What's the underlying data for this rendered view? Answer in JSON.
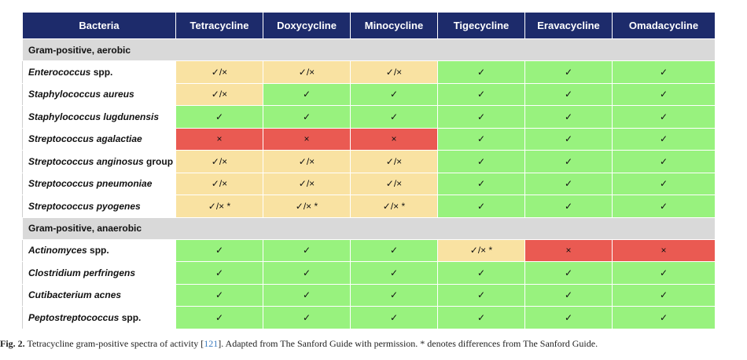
{
  "table": {
    "headers": [
      "Bacteria",
      "Tetracycline",
      "Doxycycline",
      "Minocycline",
      "Tigecycline",
      "Eravacycline",
      "Omadacycline"
    ],
    "sections": [
      {
        "title": "Gram-positive, aerobic",
        "rows": [
          {
            "name": "Enterococcus spp.",
            "italic_part": "Enterococcus",
            "plain_part": " spp.",
            "cells": [
              {
                "text": "✓/×",
                "status": "variable"
              },
              {
                "text": "✓/×",
                "status": "variable"
              },
              {
                "text": "✓/×",
                "status": "variable"
              },
              {
                "text": "✓",
                "status": "susceptible"
              },
              {
                "text": "✓",
                "status": "susceptible"
              },
              {
                "text": "✓",
                "status": "susceptible"
              }
            ]
          },
          {
            "name": "Staphylococcus aureus",
            "italic_part": "Staphylococcus aureus",
            "plain_part": "",
            "cells": [
              {
                "text": "✓/×",
                "status": "variable"
              },
              {
                "text": "✓",
                "status": "susceptible"
              },
              {
                "text": "✓",
                "status": "susceptible"
              },
              {
                "text": "✓",
                "status": "susceptible"
              },
              {
                "text": "✓",
                "status": "susceptible"
              },
              {
                "text": "✓",
                "status": "susceptible"
              }
            ]
          },
          {
            "name": "Staphylococcus lugdunensis",
            "italic_part": "Staphylococcus lugdunensis",
            "plain_part": "",
            "cells": [
              {
                "text": "✓",
                "status": "susceptible"
              },
              {
                "text": "✓",
                "status": "susceptible"
              },
              {
                "text": "✓",
                "status": "susceptible"
              },
              {
                "text": "✓",
                "status": "susceptible"
              },
              {
                "text": "✓",
                "status": "susceptible"
              },
              {
                "text": "✓",
                "status": "susceptible"
              }
            ]
          },
          {
            "name": "Streptococcus agalactiae",
            "italic_part": "Streptococcus agalactiae",
            "plain_part": "",
            "cells": [
              {
                "text": "×",
                "status": "resistant"
              },
              {
                "text": "×",
                "status": "resistant"
              },
              {
                "text": "×",
                "status": "resistant"
              },
              {
                "text": "✓",
                "status": "susceptible"
              },
              {
                "text": "✓",
                "status": "susceptible"
              },
              {
                "text": "✓",
                "status": "susceptible"
              }
            ]
          },
          {
            "name": "Streptococcus anginosus group",
            "italic_part": "Streptococcus anginosus",
            "plain_part": " group",
            "cells": [
              {
                "text": "✓/×",
                "status": "variable"
              },
              {
                "text": "✓/×",
                "status": "variable"
              },
              {
                "text": "✓/×",
                "status": "variable"
              },
              {
                "text": "✓",
                "status": "susceptible"
              },
              {
                "text": "✓",
                "status": "susceptible"
              },
              {
                "text": "✓",
                "status": "susceptible"
              }
            ]
          },
          {
            "name": "Streptococcus pneumoniae",
            "italic_part": "Streptococcus pneumoniae",
            "plain_part": "",
            "cells": [
              {
                "text": "✓/×",
                "status": "variable"
              },
              {
                "text": "✓/×",
                "status": "variable"
              },
              {
                "text": "✓/×",
                "status": "variable"
              },
              {
                "text": "✓",
                "status": "susceptible"
              },
              {
                "text": "✓",
                "status": "susceptible"
              },
              {
                "text": "✓",
                "status": "susceptible"
              }
            ]
          },
          {
            "name": "Streptococcus pyogenes",
            "italic_part": "Streptococcus pyogenes",
            "plain_part": "",
            "cells": [
              {
                "text": "✓/× *",
                "status": "variable"
              },
              {
                "text": "✓/× *",
                "status": "variable"
              },
              {
                "text": "✓/× *",
                "status": "variable"
              },
              {
                "text": "✓",
                "status": "susceptible"
              },
              {
                "text": "✓",
                "status": "susceptible"
              },
              {
                "text": "✓",
                "status": "susceptible"
              }
            ]
          }
        ]
      },
      {
        "title": "Gram-positive, anaerobic",
        "rows": [
          {
            "name": "Actinomyces spp.",
            "italic_part": "Actinomyces",
            "plain_part": " spp.",
            "cells": [
              {
                "text": "✓",
                "status": "susceptible"
              },
              {
                "text": "✓",
                "status": "susceptible"
              },
              {
                "text": "✓",
                "status": "susceptible"
              },
              {
                "text": "✓/× *",
                "status": "variable"
              },
              {
                "text": "×",
                "status": "resistant"
              },
              {
                "text": "×",
                "status": "resistant"
              }
            ]
          },
          {
            "name": "Clostridium perfringens",
            "italic_part": "Clostridium perfringens",
            "plain_part": "",
            "cells": [
              {
                "text": "✓",
                "status": "susceptible"
              },
              {
                "text": "✓",
                "status": "susceptible"
              },
              {
                "text": "✓",
                "status": "susceptible"
              },
              {
                "text": "✓",
                "status": "susceptible"
              },
              {
                "text": "✓",
                "status": "susceptible"
              },
              {
                "text": "✓",
                "status": "susceptible"
              }
            ]
          },
          {
            "name": "Cutibacterium acnes",
            "italic_part": "Cutibacterium acnes",
            "plain_part": "",
            "cells": [
              {
                "text": "✓",
                "status": "susceptible"
              },
              {
                "text": "✓",
                "status": "susceptible"
              },
              {
                "text": "✓",
                "status": "susceptible"
              },
              {
                "text": "✓",
                "status": "susceptible"
              },
              {
                "text": "✓",
                "status": "susceptible"
              },
              {
                "text": "✓",
                "status": "susceptible"
              }
            ]
          },
          {
            "name": "Peptostreptococcus spp.",
            "italic_part": "Peptostreptococcus",
            "plain_part": " spp.",
            "cells": [
              {
                "text": "✓",
                "status": "susceptible"
              },
              {
                "text": "✓",
                "status": "susceptible"
              },
              {
                "text": "✓",
                "status": "susceptible"
              },
              {
                "text": "✓",
                "status": "susceptible"
              },
              {
                "text": "✓",
                "status": "susceptible"
              },
              {
                "text": "✓",
                "status": "susceptible"
              }
            ]
          }
        ]
      }
    ]
  },
  "caption": {
    "label": "Fig. 2.",
    "text_before": "Tetracycline gram-positive spectra of activity [",
    "ref": "121",
    "text_after": "]. Adapted from The Sanford Guide with permission. * denotes differences from The Sanford Guide."
  },
  "colors": {
    "header_bg": "#1d2b6b",
    "section_bg": "#d9d9d9",
    "susceptible": "#98f27e",
    "variable": "#f9e2a2",
    "resistant": "#ea5a52",
    "ref_link": "#3b7bbf"
  }
}
